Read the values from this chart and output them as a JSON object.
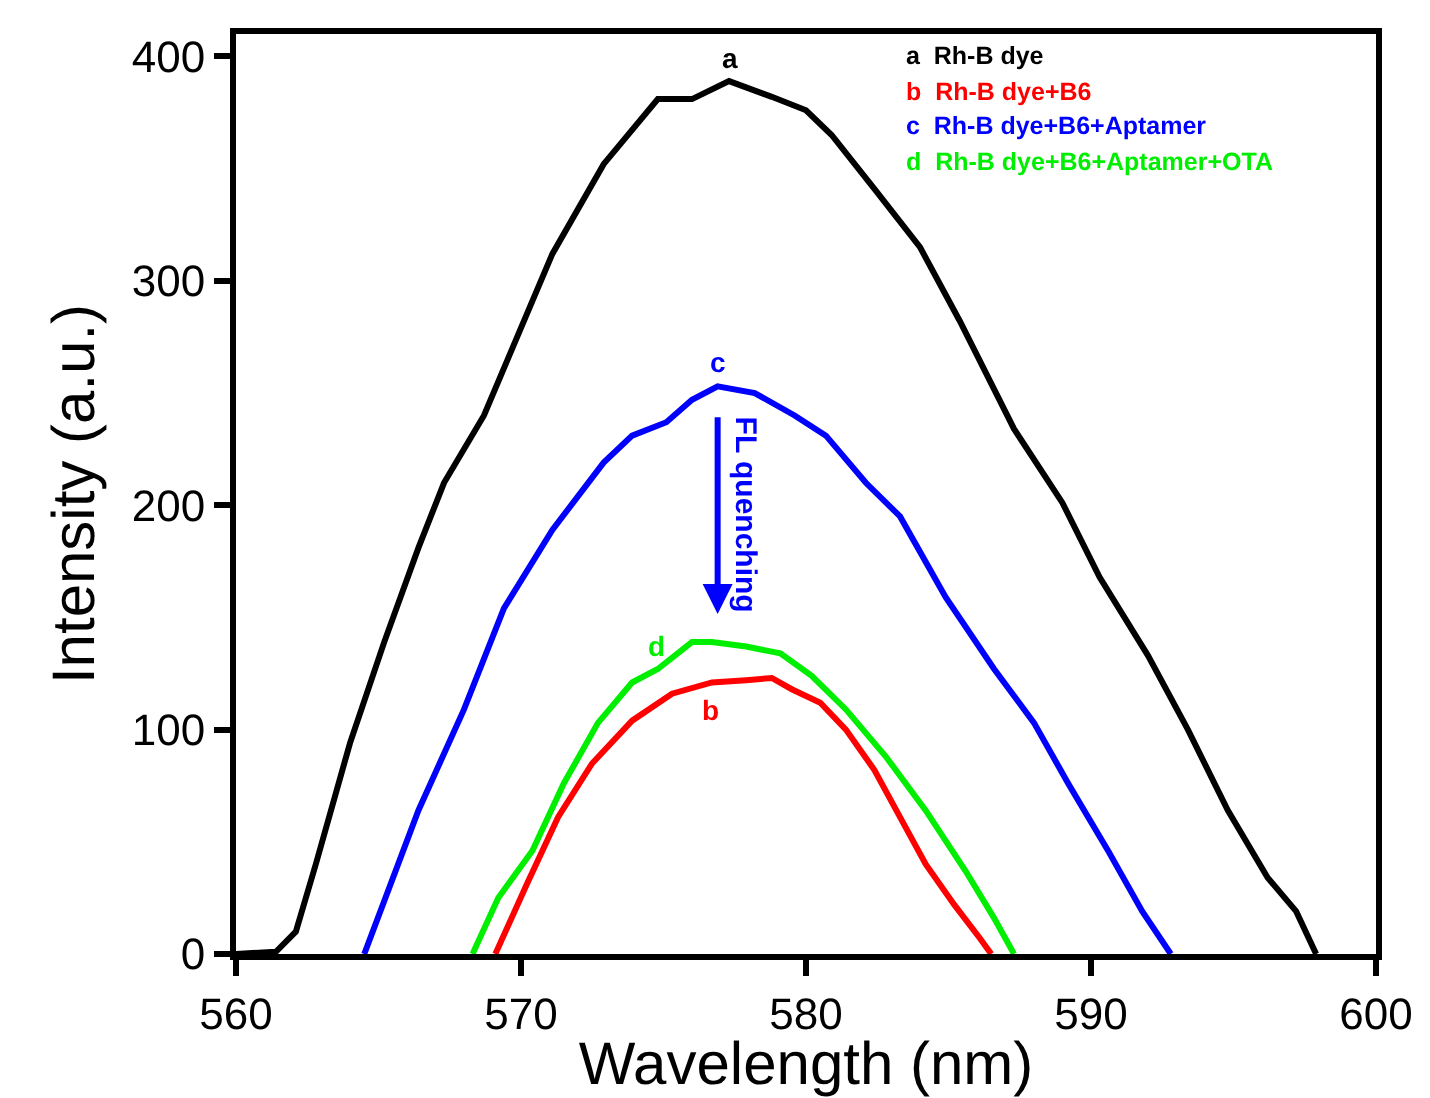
{
  "chart_data": {
    "type": "line",
    "xlabel": "Wavelength (nm)",
    "ylabel": "Intensity (a.u.)",
    "xlim": [
      560,
      600
    ],
    "ylim": [
      0,
      410
    ],
    "xticks": [
      560,
      570,
      580,
      590,
      600
    ],
    "yticks": [
      0,
      100,
      200,
      300,
      400
    ],
    "grid": false,
    "legend": "top right",
    "marker": "none",
    "line_style": "solid",
    "series": [
      {
        "name": "a  Rh-B dye",
        "color": "#000000",
        "x": [
          560,
          561.4,
          562.1,
          562.8,
          564.0,
          565.2,
          566.4,
          567.3,
          568.7,
          569.9,
          571.1,
          572.9,
          574.8,
          576.0,
          577.3,
          578.8,
          580.0,
          580.9,
          582.4,
          584.0,
          585.4,
          587.3,
          589.0,
          590.3,
          592.0,
          593.4,
          594.8,
          596.2,
          597.2,
          597.9
        ],
        "values": [
          0,
          1,
          10,
          40,
          94,
          139,
          181,
          210,
          240,
          276,
          312,
          352,
          381,
          381,
          389,
          382,
          376,
          365,
          341,
          315,
          282,
          234,
          201,
          168,
          133,
          100,
          64,
          34,
          19,
          0
        ]
      },
      {
        "name": "b  Rh-B dye+B6",
        "color": "#ff0000",
        "x": [
          569.1,
          570.2,
          571.3,
          572.5,
          573.9,
          575.3,
          576.7,
          577.9,
          578.8,
          579.5,
          580.5,
          581.4,
          582.4,
          583.3,
          584.2,
          585.2,
          586.1,
          586.5
        ],
        "values": [
          0,
          31,
          61,
          85,
          104,
          116,
          121,
          122,
          123,
          118,
          112,
          100,
          82,
          61,
          40,
          22,
          7,
          0
        ]
      },
      {
        "name": "c  Rh-B dye+B6+Aptamer",
        "color": "#0000ff",
        "x": [
          564.5,
          566.4,
          568.0,
          569.4,
          571.1,
          572.9,
          573.9,
          575.1,
          576.0,
          576.9,
          578.2,
          579.6,
          580.7,
          582.1,
          583.3,
          584.9,
          586.6,
          588.0,
          589.2,
          590.6,
          591.8,
          592.8
        ],
        "values": [
          0,
          64,
          109,
          154,
          189,
          219,
          231,
          237,
          247,
          253,
          250,
          240,
          231,
          210,
          195,
          159,
          127,
          103,
          76,
          46,
          19,
          0
        ]
      },
      {
        "name": "d  Rh-B dye+B6+Aptamer+OTA",
        "color": "#00ee00",
        "x": [
          568.3,
          569.2,
          570.4,
          571.5,
          572.7,
          573.9,
          574.8,
          576.0,
          576.7,
          577.9,
          579.1,
          580.2,
          581.4,
          582.8,
          584.2,
          585.6,
          586.6,
          587.3
        ],
        "values": [
          0,
          25,
          46,
          76,
          103,
          121,
          127,
          139,
          139,
          137,
          134,
          124,
          109,
          88,
          64,
          37,
          16,
          0
        ]
      }
    ],
    "annotations": [
      {
        "text": "a",
        "x": 577.3,
        "y": 389
      },
      {
        "text": "b",
        "x": 576.7,
        "y": 121
      },
      {
        "text": "c",
        "x": 576.9,
        "y": 253
      },
      {
        "text": "d",
        "x": 574.8,
        "y": 127
      },
      "FL quenching"
    ]
  }
}
